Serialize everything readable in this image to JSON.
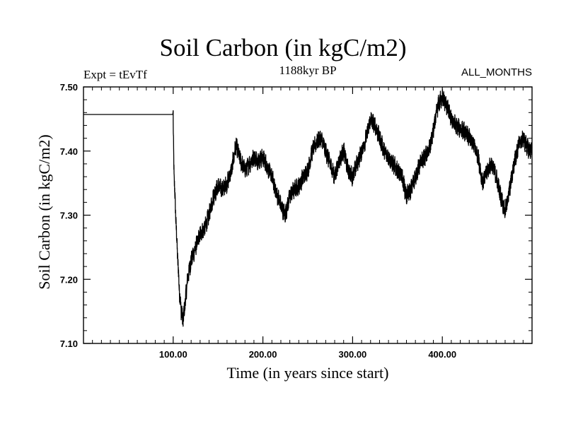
{
  "chart_data": {
    "type": "line",
    "title": "Soil Carbon (in kgC/m2)",
    "subtitle": "1188kyr BP",
    "left_annotation": "Expt = tEvTf",
    "right_annotation": "ALL_MONTHS",
    "xlabel": "Time (in years since start)",
    "ylabel": "Soil Carbon (in kgC/m2)",
    "xlim": [
      0,
      500
    ],
    "ylim": [
      7.1,
      7.5
    ],
    "x_ticks": [
      100,
      200,
      300,
      400
    ],
    "x_tick_labels": [
      "100.00",
      "200.00",
      "300.00",
      "400.00"
    ],
    "y_ticks": [
      7.1,
      7.2,
      7.3,
      7.4,
      7.5
    ],
    "y_tick_labels": [
      "7.10",
      "7.20",
      "7.30",
      "7.40",
      "7.50"
    ],
    "grid": false,
    "series": [
      {
        "name": "Soil Carbon",
        "color": "#000000",
        "noise_amplitude": 0.012,
        "x": [
          0,
          99.5,
          100,
          101,
          104,
          107,
          109,
          111,
          113,
          116,
          120,
          125,
          130,
          135,
          140,
          145,
          150,
          155,
          160,
          165,
          170,
          175,
          180,
          185,
          190,
          195,
          200,
          205,
          210,
          215,
          220,
          225,
          230,
          235,
          240,
          245,
          250,
          255,
          260,
          265,
          270,
          275,
          280,
          285,
          290,
          295,
          300,
          305,
          310,
          315,
          320,
          325,
          330,
          335,
          340,
          345,
          350,
          355,
          360,
          365,
          370,
          375,
          380,
          385,
          390,
          395,
          400,
          405,
          410,
          415,
          420,
          425,
          430,
          435,
          440,
          445,
          450,
          455,
          460,
          465,
          470,
          475,
          480,
          485,
          490,
          495,
          500
        ],
        "y": [
          7.457,
          7.457,
          7.44,
          7.36,
          7.26,
          7.18,
          7.15,
          7.135,
          7.16,
          7.2,
          7.23,
          7.25,
          7.27,
          7.28,
          7.3,
          7.33,
          7.345,
          7.34,
          7.35,
          7.37,
          7.41,
          7.385,
          7.37,
          7.38,
          7.39,
          7.385,
          7.39,
          7.375,
          7.36,
          7.335,
          7.315,
          7.3,
          7.33,
          7.34,
          7.345,
          7.36,
          7.37,
          7.4,
          7.415,
          7.42,
          7.4,
          7.38,
          7.36,
          7.385,
          7.4,
          7.37,
          7.36,
          7.38,
          7.4,
          7.42,
          7.45,
          7.44,
          7.42,
          7.4,
          7.39,
          7.38,
          7.37,
          7.36,
          7.33,
          7.34,
          7.36,
          7.38,
          7.39,
          7.4,
          7.43,
          7.47,
          7.485,
          7.47,
          7.45,
          7.44,
          7.435,
          7.43,
          7.42,
          7.41,
          7.39,
          7.35,
          7.37,
          7.38,
          7.36,
          7.33,
          7.305,
          7.34,
          7.38,
          7.41,
          7.42,
          7.405,
          7.4
        ]
      }
    ]
  }
}
